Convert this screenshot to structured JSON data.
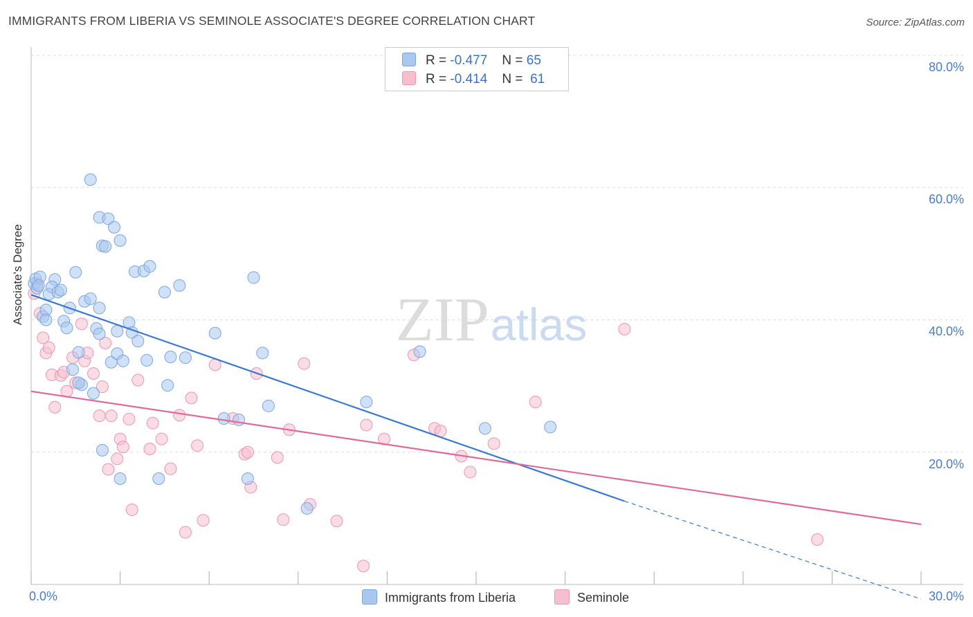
{
  "title": "IMMIGRANTS FROM LIBERIA VS SEMINOLE ASSOCIATE'S DEGREE CORRELATION CHART",
  "source": "Source: ZipAtlas.com",
  "watermark": {
    "zip": "ZIP",
    "atlas": "atlas"
  },
  "legend": {
    "rows": [
      {
        "r_label": "R =",
        "r_value": "-0.477",
        "n_label": "N =",
        "n_value": "65"
      },
      {
        "r_label": "R =",
        "r_value": "-0.414",
        "n_label": "N =",
        "n_value": "61"
      }
    ]
  },
  "bottom_legend": [
    "Immigrants from Liberia",
    "Seminole"
  ],
  "colors": {
    "liberia_fill": "#a9c8f0",
    "liberia_stroke": "#7aa6e0",
    "liberia_line": "#3a78d4",
    "seminole_fill": "#f6bfd0",
    "seminole_stroke": "#ec95b3",
    "seminole_line": "#e0699a",
    "grid": "#dddddd",
    "tick_text": "#4a7cc9"
  },
  "chart_data": {
    "type": "scatter",
    "title": "IMMIGRANTS FROM LIBERIA VS SEMINOLE ASSOCIATE'S DEGREE CORRELATION CHART",
    "xlabel": "",
    "ylabel": "Associate's Degree",
    "xlim": [
      0,
      30
    ],
    "ylim": [
      0,
      80
    ],
    "x_tick_labels": [
      "0.0%",
      "30.0%"
    ],
    "y_tick_labels": [
      "20.0%",
      "40.0%",
      "60.0%",
      "80.0%"
    ],
    "y_ticks": [
      20,
      40,
      60,
      80
    ],
    "grid": true,
    "legend_position": "top-center",
    "series": [
      {
        "name": "Immigrants from Liberia",
        "r": -0.477,
        "n": 65,
        "trend": {
          "x_start": 0,
          "y_start": 43.8,
          "x_solid_end": 20,
          "y_solid_end": 12.6,
          "x_dash_end": 30,
          "y_dash_end": -2.2
        },
        "points": [
          [
            0.1,
            45.5
          ],
          [
            0.15,
            46.2
          ],
          [
            0.2,
            44.8
          ],
          [
            0.3,
            46.5
          ],
          [
            0.25,
            45.2
          ],
          [
            0.4,
            40.5
          ],
          [
            0.5,
            41.5
          ],
          [
            0.6,
            43.9
          ],
          [
            0.8,
            46.1
          ],
          [
            0.7,
            45.0
          ],
          [
            0.9,
            44.2
          ],
          [
            1.0,
            44.5
          ],
          [
            1.1,
            39.8
          ],
          [
            1.2,
            38.8
          ],
          [
            1.3,
            41.8
          ],
          [
            1.5,
            47.2
          ],
          [
            1.6,
            35.1
          ],
          [
            1.7,
            30.2
          ],
          [
            1.4,
            32.5
          ],
          [
            1.8,
            42.8
          ],
          [
            2.0,
            43.2
          ],
          [
            2.1,
            28.9
          ],
          [
            2.2,
            38.7
          ],
          [
            2.3,
            37.9
          ],
          [
            2.4,
            51.2
          ],
          [
            2.5,
            51.1
          ],
          [
            2.0,
            61.2
          ],
          [
            2.3,
            55.5
          ],
          [
            2.6,
            55.3
          ],
          [
            2.8,
            54.0
          ],
          [
            2.7,
            33.6
          ],
          [
            2.9,
            34.9
          ],
          [
            3.0,
            52.0
          ],
          [
            3.1,
            33.8
          ],
          [
            3.3,
            39.6
          ],
          [
            3.4,
            38.1
          ],
          [
            3.5,
            47.3
          ],
          [
            3.6,
            36.8
          ],
          [
            3.8,
            47.4
          ],
          [
            3.9,
            33.9
          ],
          [
            4.0,
            48.1
          ],
          [
            2.3,
            41.8
          ],
          [
            2.9,
            38.3
          ],
          [
            4.5,
            44.2
          ],
          [
            4.7,
            34.4
          ],
          [
            5.0,
            45.2
          ],
          [
            5.2,
            34.3
          ],
          [
            4.6,
            30.1
          ],
          [
            3.0,
            16.0
          ],
          [
            4.3,
            16.0
          ],
          [
            6.2,
            38.0
          ],
          [
            6.5,
            25.1
          ],
          [
            7.0,
            24.9
          ],
          [
            7.5,
            46.4
          ],
          [
            7.8,
            35.0
          ],
          [
            8.0,
            27.0
          ],
          [
            7.3,
            16.0
          ],
          [
            9.3,
            11.5
          ],
          [
            11.3,
            27.6
          ],
          [
            13.1,
            35.2
          ],
          [
            15.3,
            23.6
          ],
          [
            17.5,
            23.8
          ],
          [
            2.4,
            20.3
          ],
          [
            0.5,
            40.0
          ],
          [
            1.6,
            30.5
          ]
        ]
      },
      {
        "name": "Seminole",
        "r": -0.414,
        "n": 61,
        "trend": {
          "x_start": 0,
          "y_start": 29.2,
          "x_end": 30,
          "y_end": 9.1
        },
        "points": [
          [
            0.1,
            44.0
          ],
          [
            0.2,
            45.5
          ],
          [
            0.3,
            41.0
          ],
          [
            0.4,
            37.3
          ],
          [
            0.5,
            35.0
          ],
          [
            0.6,
            35.8
          ],
          [
            0.7,
            31.7
          ],
          [
            0.8,
            26.8
          ],
          [
            1.0,
            31.6
          ],
          [
            1.1,
            32.1
          ],
          [
            1.2,
            29.2
          ],
          [
            1.4,
            34.3
          ],
          [
            1.5,
            30.5
          ],
          [
            1.7,
            39.4
          ],
          [
            1.8,
            33.8
          ],
          [
            1.9,
            35.0
          ],
          [
            2.1,
            31.9
          ],
          [
            2.3,
            25.5
          ],
          [
            2.4,
            29.9
          ],
          [
            2.5,
            36.5
          ],
          [
            2.6,
            17.4
          ],
          [
            2.7,
            25.5
          ],
          [
            2.9,
            19.0
          ],
          [
            3.0,
            22.0
          ],
          [
            3.1,
            20.8
          ],
          [
            3.3,
            25.0
          ],
          [
            3.4,
            11.3
          ],
          [
            3.6,
            30.9
          ],
          [
            4.0,
            20.5
          ],
          [
            4.1,
            24.4
          ],
          [
            4.4,
            22.0
          ],
          [
            4.7,
            17.5
          ],
          [
            5.0,
            25.6
          ],
          [
            5.2,
            7.9
          ],
          [
            5.4,
            28.2
          ],
          [
            5.6,
            21.0
          ],
          [
            5.8,
            9.7
          ],
          [
            6.2,
            33.2
          ],
          [
            6.8,
            25.1
          ],
          [
            7.2,
            19.7
          ],
          [
            7.4,
            14.7
          ],
          [
            7.6,
            31.9
          ],
          [
            8.3,
            19.2
          ],
          [
            8.5,
            9.8
          ],
          [
            8.7,
            23.4
          ],
          [
            9.2,
            33.4
          ],
          [
            9.4,
            12.1
          ],
          [
            10.3,
            9.6
          ],
          [
            11.3,
            24.1
          ],
          [
            11.2,
            2.8
          ],
          [
            11.9,
            22.0
          ],
          [
            12.9,
            34.7
          ],
          [
            13.6,
            23.6
          ],
          [
            14.5,
            19.4
          ],
          [
            14.8,
            17.0
          ],
          [
            15.6,
            21.3
          ],
          [
            17.0,
            27.6
          ],
          [
            20.0,
            38.6
          ],
          [
            26.5,
            6.8
          ],
          [
            7.3,
            20.0
          ],
          [
            13.8,
            23.2
          ]
        ]
      }
    ]
  }
}
